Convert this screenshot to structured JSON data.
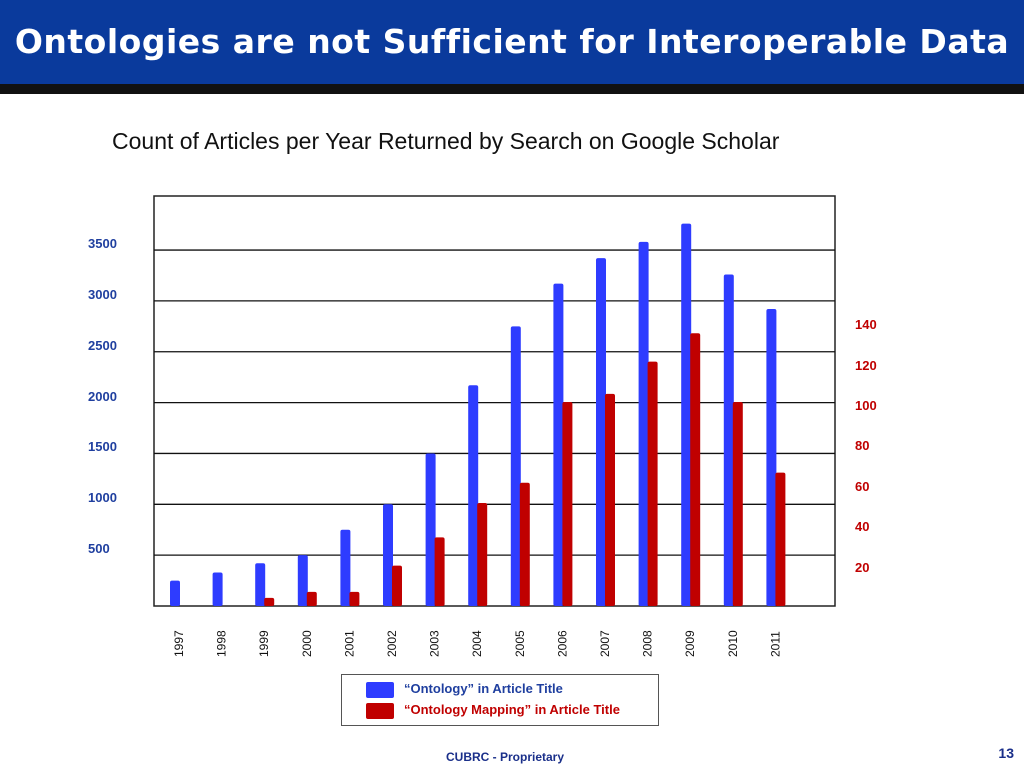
{
  "slide": {
    "title": "Ontologies are not Sufficient for Interoperable Data",
    "footer": "CUBRC - Proprietary",
    "page_number": "13"
  },
  "chart_data": {
    "type": "bar",
    "title": "Count of Articles per Year Returned by Search on Google Scholar",
    "categories": [
      "1997",
      "1998",
      "1999",
      "2000",
      "2001",
      "2002",
      "2003",
      "2004",
      "2005",
      "2006",
      "2007",
      "2008",
      "2009",
      "2010",
      "2011"
    ],
    "series": [
      {
        "name": "“Ontology” in Article Title",
        "axis": "left",
        "color": "#2e3cff",
        "values": [
          250,
          330,
          420,
          500,
          750,
          1000,
          1500,
          2170,
          2750,
          3170,
          3420,
          3580,
          3760,
          3260,
          2920
        ]
      },
      {
        "name": "“Ontology Mapping” in Article Title",
        "axis": "right",
        "color": "#c00000",
        "values": [
          null,
          null,
          4,
          7,
          7,
          20,
          34,
          51,
          61,
          101,
          105,
          121,
          135,
          101,
          66
        ]
      }
    ],
    "y_left": {
      "ticks": [
        500,
        1000,
        1500,
        2000,
        2500,
        3000,
        3500
      ],
      "tick_labels": [
        "500",
        "1000",
        "1500",
        "2000",
        "2500",
        "3000",
        "3500"
      ],
      "color": "#1f3f9f"
    },
    "y_right": {
      "ticks": [
        20,
        40,
        60,
        80,
        100,
        120,
        140
      ],
      "tick_labels": [
        "20",
        "40",
        "60",
        "80",
        "100",
        "120",
        "140"
      ],
      "color": "#c00000"
    },
    "grid": true,
    "legend_position": "bottom"
  }
}
